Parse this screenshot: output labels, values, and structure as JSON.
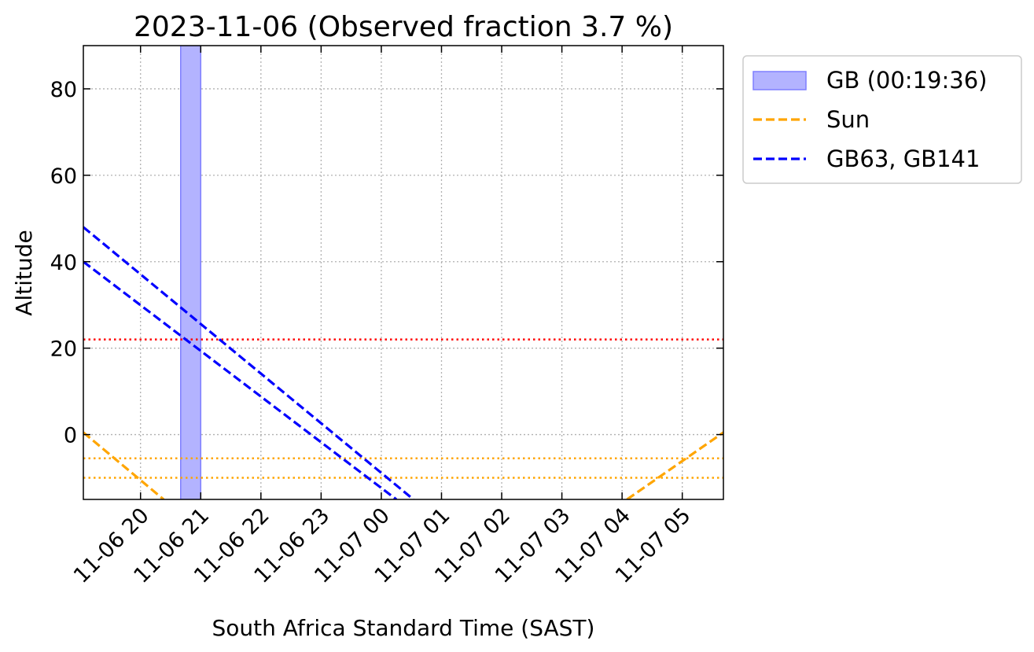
{
  "chart_data": {
    "type": "line",
    "title": "2023-11-06 (Observed fraction 3.7 %)",
    "xlabel": "South Africa Standard Time (SAST)",
    "ylabel": "Altitude",
    "xlim": [
      "2023-11-06 19:03",
      "2023-11-07 05:41"
    ],
    "ylim": [
      -15,
      90
    ],
    "x_ticks": [
      {
        "label": "11-06 20",
        "t": "2023-11-06 20:00"
      },
      {
        "label": "11-06 21",
        "t": "2023-11-06 21:00"
      },
      {
        "label": "11-06 22",
        "t": "2023-11-06 22:00"
      },
      {
        "label": "11-06 23",
        "t": "2023-11-06 23:00"
      },
      {
        "label": "11-07 00",
        "t": "2023-11-07 00:00"
      },
      {
        "label": "11-07 01",
        "t": "2023-11-07 01:00"
      },
      {
        "label": "11-07 02",
        "t": "2023-11-07 02:00"
      },
      {
        "label": "11-07 03",
        "t": "2023-11-07 03:00"
      },
      {
        "label": "11-07 04",
        "t": "2023-11-07 04:00"
      },
      {
        "label": "11-07 05",
        "t": "2023-11-07 05:00"
      }
    ],
    "y_ticks": [
      {
        "label": "0",
        "v": 0
      },
      {
        "label": "20",
        "v": 20
      },
      {
        "label": "40",
        "v": 40
      },
      {
        "label": "60",
        "v": 60
      },
      {
        "label": "80",
        "v": 80
      }
    ],
    "grid": true,
    "legend_placement": "outside-right-top",
    "legend": [
      {
        "label": "GB (00:19:36)",
        "kind": "patch",
        "color": "#b3b3ff",
        "edge": "#7f7fff"
      },
      {
        "label": "Sun",
        "kind": "dashed-line",
        "color": "#ffa500"
      },
      {
        "label": "GB63, GB141",
        "kind": "dashed-line",
        "color": "#0000ff"
      }
    ],
    "observation_window": {
      "start": "2023-11-06 20:40",
      "end": "2023-11-06 21:00",
      "color": "#b3b3ff",
      "edge": "#7f7fff"
    },
    "series": [
      {
        "color": "#ffa500",
        "points": [
          [
            "2023-11-06 19:03",
            0.5
          ],
          [
            "2023-11-06 20:23",
            -15
          ]
        ]
      },
      {
        "color": "#ffa500",
        "points": [
          [
            "2023-11-07 04:05",
            -15
          ],
          [
            "2023-11-07 05:41",
            0.5
          ]
        ]
      },
      {
        "color": "#0000ff",
        "points": [
          [
            "2023-11-06 19:03",
            48
          ],
          [
            "2023-11-07 00:32",
            -15
          ]
        ]
      },
      {
        "color": "#0000ff",
        "points": [
          [
            "2023-11-06 19:03",
            40
          ],
          [
            "2023-11-07 00:15",
            -15
          ]
        ]
      }
    ],
    "reference_lines": [
      {
        "y": 22,
        "color": "#ff0000",
        "style": "dotted"
      },
      {
        "y": -5.5,
        "color": "#ffa500",
        "style": "dotted"
      },
      {
        "y": -10,
        "color": "#ffa500",
        "style": "dotted"
      }
    ]
  }
}
